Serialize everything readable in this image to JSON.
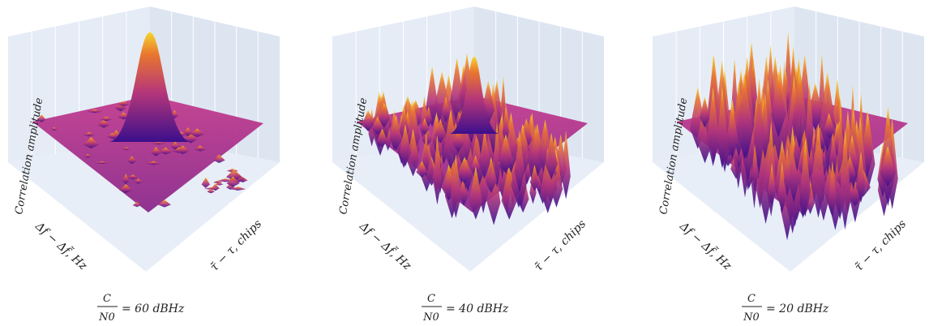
{
  "panels": [
    {
      "z_label": "Correlation amplitude",
      "x_label": "Δf − Δf̃, Hz",
      "y_label": "τ̃ − τ, chips",
      "caption_num": "C",
      "caption_den": "N0",
      "caption_rest": "= 60 dBHz"
    },
    {
      "z_label": "Correlation amplitude",
      "x_label": "Δf − Δf̃, Hz",
      "y_label": "τ̃ − τ, chips",
      "caption_num": "C",
      "caption_den": "N0",
      "caption_rest": "= 40 dBHz"
    },
    {
      "z_label": "Correlation amplitude",
      "x_label": "Δf − Δf̃, Hz",
      "y_label": "τ̃ − τ, chips",
      "caption_num": "C",
      "caption_den": "N0",
      "caption_rest": "= 20 dBHz"
    }
  ]
}
